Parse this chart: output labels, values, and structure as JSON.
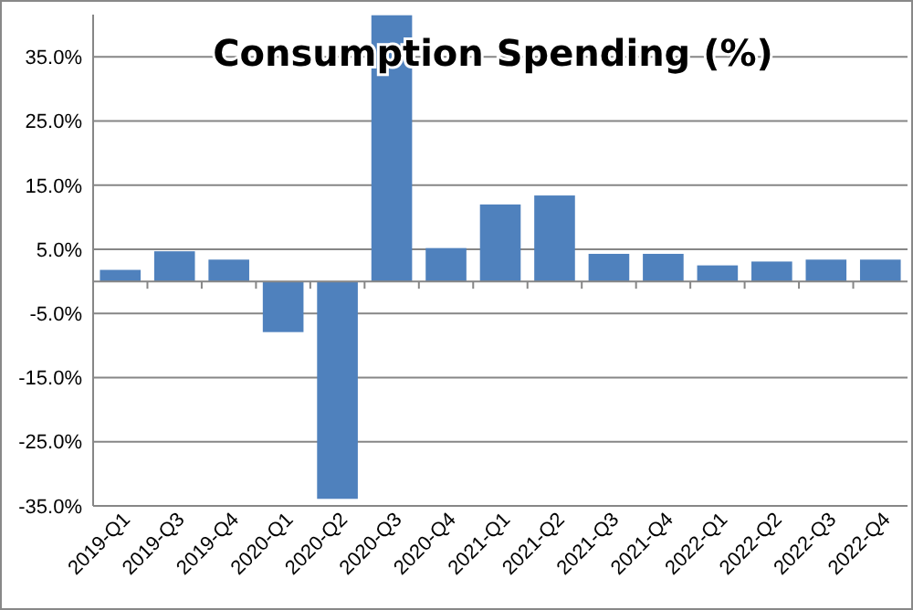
{
  "chart_data": {
    "type": "bar",
    "title": "Consumption Spending (%)",
    "categories": [
      "2019-Q1",
      "2019-Q3",
      "2019-Q4",
      "2020-Q1",
      "2020-Q2",
      "2020-Q3",
      "2020-Q4",
      "2021-Q1",
      "2021-Q2",
      "2021-Q3",
      "2021-Q4",
      "2022-Q1",
      "2022-Q2",
      "2022-Q3",
      "2022-Q4"
    ],
    "values": [
      1.8,
      4.7,
      3.4,
      -7.9,
      -33.9,
      41.5,
      5.2,
      12.0,
      13.4,
      4.3,
      4.3,
      2.5,
      3.1,
      3.4,
      3.4
    ],
    "color": "#4f81bd",
    "ylim": [
      -35,
      41.6
    ],
    "yticks": [
      {
        "value": -35,
        "label": "-35.0%"
      },
      {
        "value": -25,
        "label": "-25.0%"
      },
      {
        "value": -15,
        "label": "-15.0%"
      },
      {
        "value": -5,
        "label": "-5.0%"
      },
      {
        "value": 5,
        "label": "5.0%"
      },
      {
        "value": 15,
        "label": "15.0%"
      },
      {
        "value": 25,
        "label": "25.0%"
      },
      {
        "value": 35,
        "label": "35.0%"
      }
    ],
    "grid": "y"
  }
}
